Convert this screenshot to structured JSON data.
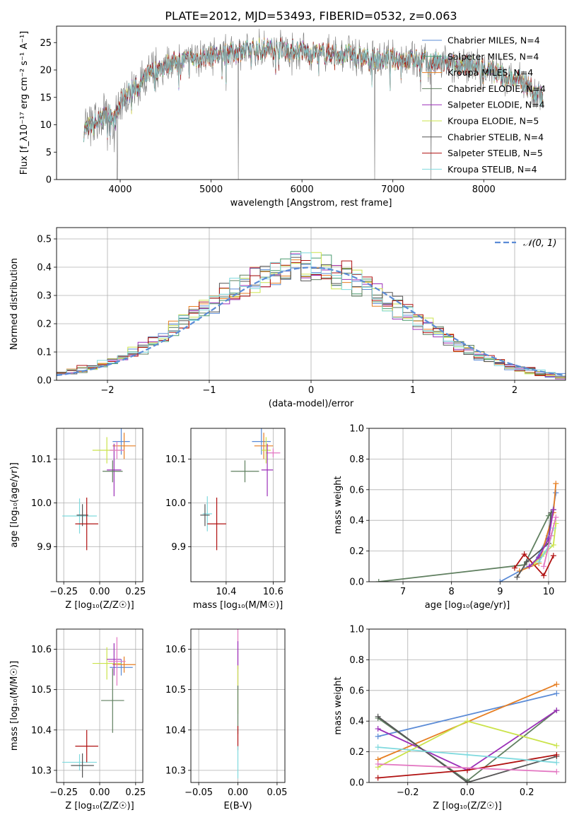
{
  "figure_title": "PLATE=2012, MJD=53493, FIBERID=0532, z=0.063",
  "colors": {
    "Chabrier MILES": "#5b8bd6",
    "Salpeter MILES": "#4a9a6f",
    "Kroupa MILES": "#e67e22",
    "Chabrier ELODIE": "#5f7f5f",
    "Salpeter ELODIE": "#9b2fb8",
    "Kroupa ELODIE": "#cbe34b",
    "Chabrier STELIB": "#555555",
    "Salpeter STELIB": "#b01010",
    "Kroupa STELIB": "#7fd9de",
    "extra": "#e377c2",
    "gaussian": "#5b8bd6"
  },
  "chart_data": [
    {
      "id": "spectrum",
      "type": "line",
      "xlabel": "wavelength [Angstrom, rest frame]",
      "ylabel": "Flux [f_λ10⁻¹⁷ erg cm⁻² s⁻¹ A⁻¹]",
      "xlim": [
        3300,
        8900
      ],
      "ylim": [
        0,
        28
      ],
      "xticks": [
        4000,
        5000,
        6000,
        7000,
        8000
      ],
      "yticks": [
        0,
        5,
        10,
        15,
        20,
        25
      ],
      "grid": false,
      "legend_position": "right",
      "legend": [
        "Chabrier MILES, N_SSP=4",
        "Salpeter MILES, N_SSP=4",
        "Kroupa MILES, N_SSP=4",
        "Chabrier ELODIE, N_SSP=4",
        "Salpeter ELODIE, N_SSP=4",
        "Kroupa ELODIE, N_SSP=5",
        "Chabrier STELIB, N_SSP=4",
        "Salpeter STELIB, N_SSP=5",
        "Kroupa STELIB, N_SSP=4"
      ],
      "continuum": {
        "x": [
          3600,
          3700,
          3800,
          3900,
          3950,
          4000,
          4100,
          4200,
          4300,
          4400,
          4500,
          4600,
          4800,
          5000,
          5200,
          5400,
          5600,
          5800,
          6000,
          6200,
          6400,
          6600,
          6800,
          7000,
          7200,
          7400,
          7600,
          7800,
          8000,
          8200,
          8400,
          8600,
          8650
        ],
        "y": [
          9,
          10,
          11,
          12,
          11,
          14,
          16,
          17,
          19,
          20,
          21,
          21.5,
          22,
          22.5,
          23,
          23.5,
          24,
          24,
          23.5,
          23,
          23,
          22.5,
          22,
          22,
          22,
          21.5,
          21,
          21,
          20.5,
          19,
          18,
          16,
          15
        ]
      },
      "absorption_lines": [
        {
          "x": 3934,
          "y": 5
        },
        {
          "x": 3968,
          "y": 0
        },
        {
          "x": 5300,
          "y": 0
        },
        {
          "x": 5890,
          "y": 19
        },
        {
          "x": 6800,
          "y": 0
        },
        {
          "x": 7420,
          "y": 0
        }
      ]
    },
    {
      "id": "residuals",
      "type": "line",
      "xlabel": "(data-model)/error",
      "ylabel": "Normed distribution",
      "xlim": [
        -2.5,
        2.5
      ],
      "ylim": [
        0,
        0.54
      ],
      "xticks": [
        -2,
        -1,
        0,
        1,
        2
      ],
      "yticks": [
        0.0,
        0.1,
        0.2,
        0.3,
        0.4,
        0.5
      ],
      "grid": true,
      "legend_position": "top-right",
      "legend": [
        "𝒩(0, 1)"
      ],
      "gaussian": {
        "mean": 0,
        "sigma": 1,
        "style": "dashed"
      },
      "histogram_bins": {
        "start": -2.5,
        "width": 0.1,
        "count": 50
      }
    },
    {
      "id": "age_vs_Z",
      "type": "scatter",
      "xlabel": "Z [log₁₀(Z/Z☉)]",
      "ylabel": "age  [log₁₀(age/yr)]",
      "xlim": [
        -0.3,
        0.3
      ],
      "ylim": [
        9.82,
        10.17
      ],
      "xticks": [
        -0.25,
        0.0,
        0.25
      ],
      "xticklabels": [
        "−0.25",
        "0.00",
        "0.25"
      ],
      "yticks": [
        9.9,
        10.0,
        10.1
      ],
      "grid": true,
      "points": [
        {
          "model": "Chabrier MILES",
          "x": 0.15,
          "y": 10.14,
          "xerr": 0.06,
          "yerr": 0.03
        },
        {
          "model": "Kroupa MILES",
          "x": 0.17,
          "y": 10.13,
          "xerr": 0.08,
          "yerr": 0.03
        },
        {
          "model": "Salpeter ELODIE",
          "x": 0.1,
          "y": 10.075,
          "xerr": 0.05,
          "yerr": 0.06
        },
        {
          "model": "Chabrier ELODIE",
          "x": 0.09,
          "y": 10.072,
          "xerr": 0.07,
          "yerr": 0.025
        },
        {
          "model": "Kroupa ELODIE",
          "x": 0.05,
          "y": 10.12,
          "xerr": 0.1,
          "yerr": 0.03
        },
        {
          "model": "extra",
          "x": 0.12,
          "y": 10.12,
          "xerr": 0.05,
          "yerr": 0.02
        },
        {
          "model": "Kroupa STELIB",
          "x": -0.14,
          "y": 9.97,
          "xerr": 0.12,
          "yerr": 0.04
        },
        {
          "model": "Chabrier STELIB",
          "x": -0.12,
          "y": 9.972,
          "xerr": 0.04,
          "yerr": 0.025
        },
        {
          "model": "Salpeter STELIB",
          "x": -0.09,
          "y": 9.952,
          "xerr": 0.08,
          "yerr": 0.06
        }
      ]
    },
    {
      "id": "age_vs_mass",
      "type": "scatter",
      "xlabel": "mass [log₁₀(M/M☉)]",
      "ylabel": "",
      "xlim": [
        10.25,
        10.65
      ],
      "ylim": [
        9.82,
        10.17
      ],
      "xticks": [
        10.4,
        10.6
      ],
      "yticks": [
        9.9,
        10.0,
        10.1
      ],
      "grid": true,
      "points": [
        {
          "model": "Chabrier MILES",
          "x": 10.55,
          "y": 10.14,
          "xerr": 0.04,
          "yerr": 0.03
        },
        {
          "model": "Kroupa MILES",
          "x": 10.56,
          "y": 10.13,
          "xerr": 0.04,
          "yerr": 0.03
        },
        {
          "model": "Kroupa ELODIE",
          "x": 10.57,
          "y": 10.12,
          "xerr": 0.02,
          "yerr": 0.03
        },
        {
          "model": "extra",
          "x": 10.6,
          "y": 10.114,
          "xerr": 0.03,
          "yerr": 0.01
        },
        {
          "model": "Salpeter ELODIE",
          "x": 10.575,
          "y": 10.075,
          "xerr": 0.025,
          "yerr": 0.06
        },
        {
          "model": "Chabrier ELODIE",
          "x": 10.48,
          "y": 10.072,
          "xerr": 0.06,
          "yerr": 0.025
        },
        {
          "model": "Kroupa STELIB",
          "x": 10.32,
          "y": 9.975,
          "xerr": 0.02,
          "yerr": 0.04
        },
        {
          "model": "Chabrier STELIB",
          "x": 10.31,
          "y": 9.972,
          "xerr": 0.02,
          "yerr": 0.025
        },
        {
          "model": "Salpeter STELIB",
          "x": 10.36,
          "y": 9.952,
          "xerr": 0.04,
          "yerr": 0.06
        }
      ]
    },
    {
      "id": "weight_vs_age",
      "type": "line",
      "xlabel": "age  [log₁₀(age/yr)]",
      "ylabel": "mass weight",
      "xlim": [
        6.3,
        10.35
      ],
      "ylim": [
        0,
        1.0
      ],
      "xticks": [
        7,
        8,
        9,
        10
      ],
      "yticks": [
        0.0,
        0.2,
        0.4,
        0.6,
        0.8,
        1.0
      ],
      "grid": true,
      "series": [
        {
          "model": "Chabrier ELODIE",
          "x": [
            6.5,
            9.5,
            10.0,
            10.1
          ],
          "y": [
            0.0,
            0.11,
            0.43,
            0.47
          ]
        },
        {
          "model": "Chabrier MILES",
          "x": [
            9.0,
            9.7,
            10.0,
            10.15
          ],
          "y": [
            0.0,
            0.12,
            0.3,
            0.58
          ]
        },
        {
          "model": "Kroupa MILES",
          "x": [
            9.4,
            9.8,
            10.1,
            10.15
          ],
          "y": [
            0.07,
            0.12,
            0.45,
            0.64
          ]
        },
        {
          "model": "Salpeter STELIB",
          "x": [
            9.3,
            9.5,
            9.9,
            10.1
          ],
          "y": [
            0.09,
            0.18,
            0.04,
            0.17
          ]
        },
        {
          "model": "Chabrier STELIB",
          "x": [
            9.35,
            9.55,
            10.0,
            10.05
          ],
          "y": [
            0.03,
            0.13,
            0.25,
            0.45
          ]
        },
        {
          "model": "Kroupa ELODIE",
          "x": [
            9.7,
            9.9,
            10.1,
            10.15
          ],
          "y": [
            0.12,
            0.18,
            0.24,
            0.38
          ]
        },
        {
          "model": "Salpeter ELODIE",
          "x": [
            9.6,
            9.8,
            10.0,
            10.1
          ],
          "y": [
            0.1,
            0.16,
            0.28,
            0.47
          ]
        },
        {
          "model": "Kroupa STELIB",
          "x": [
            9.8,
            10.0,
            10.1
          ],
          "y": [
            0.13,
            0.23,
            0.35
          ]
        },
        {
          "model": "extra",
          "x": [
            9.9,
            10.05,
            10.15
          ],
          "y": [
            0.1,
            0.3,
            0.42
          ]
        }
      ]
    },
    {
      "id": "mass_vs_Z",
      "type": "scatter",
      "xlabel": "Z [log₁₀(Z/Z☉)]",
      "ylabel": "mass [log₁₀(M/M☉)]",
      "xlim": [
        -0.3,
        0.3
      ],
      "ylim": [
        10.27,
        10.65
      ],
      "xticks": [
        -0.25,
        0.0,
        0.25
      ],
      "xticklabels": [
        "−0.25",
        "0.00",
        "0.25"
      ],
      "yticks": [
        10.3,
        10.4,
        10.5,
        10.6
      ],
      "grid": true,
      "points": [
        {
          "model": "Chabrier MILES",
          "x": 0.15,
          "y": 10.555,
          "xerr": 0.08,
          "yerr": 0.02
        },
        {
          "model": "Kroupa MILES",
          "x": 0.17,
          "y": 10.562,
          "xerr": 0.08,
          "yerr": 0.02
        },
        {
          "model": "Kroupa ELODIE",
          "x": 0.05,
          "y": 10.565,
          "xerr": 0.1,
          "yerr": 0.04
        },
        {
          "model": "Salpeter ELODIE",
          "x": 0.1,
          "y": 10.575,
          "xerr": 0.05,
          "yerr": 0.04
        },
        {
          "model": "extra",
          "x": 0.12,
          "y": 10.57,
          "xerr": 0.06,
          "yerr": 0.06
        },
        {
          "model": "Chabrier ELODIE",
          "x": 0.09,
          "y": 10.473,
          "xerr": 0.08,
          "yerr": 0.08
        },
        {
          "model": "Kroupa STELIB",
          "x": -0.14,
          "y": 10.32,
          "xerr": 0.12,
          "yerr": 0.02
        },
        {
          "model": "Chabrier STELIB",
          "x": -0.12,
          "y": 10.312,
          "xerr": 0.08,
          "yerr": 0.03
        },
        {
          "model": "Salpeter STELIB",
          "x": -0.09,
          "y": 10.36,
          "xerr": 0.08,
          "yerr": 0.04
        }
      ]
    },
    {
      "id": "mass_vs_EBV",
      "type": "scatter",
      "xlabel": "E(B-V)",
      "ylabel": "",
      "xlim": [
        -0.06,
        0.06
      ],
      "ylim": [
        10.27,
        10.65
      ],
      "xticks": [
        -0.05,
        0.0,
        0.05
      ],
      "xticklabels": [
        "−0.05",
        "0.00",
        "0.05"
      ],
      "yticks": [
        10.3,
        10.4,
        10.5,
        10.6
      ],
      "grid": true,
      "points": [
        {
          "model": "extra",
          "x": 0.0,
          "y": 10.6,
          "xerr": 0,
          "yerr": 0.05
        },
        {
          "model": "Salpeter ELODIE",
          "x": 0.0,
          "y": 10.56,
          "xerr": 0,
          "yerr": 0.06
        },
        {
          "model": "Kroupa ELODIE",
          "x": 0.0,
          "y": 10.5,
          "xerr": 0,
          "yerr": 0.06
        },
        {
          "model": "Chabrier ELODIE",
          "x": 0.0,
          "y": 10.45,
          "xerr": 0,
          "yerr": 0.06
        },
        {
          "model": "Salpeter STELIB",
          "x": 0.0,
          "y": 10.38,
          "xerr": 0,
          "yerr": 0.03
        },
        {
          "model": "Kroupa STELIB",
          "x": 0.0,
          "y": 10.32,
          "xerr": 0,
          "yerr": 0.04
        }
      ]
    },
    {
      "id": "weight_vs_Z",
      "type": "line",
      "xlabel": "Z [log₁₀(Z/Z☉)]",
      "ylabel": "mass weight",
      "xlim": [
        -0.33,
        0.33
      ],
      "ylim": [
        0,
        1.0
      ],
      "xticks": [
        -0.2,
        0.0,
        0.2
      ],
      "xticklabels": [
        "−0.2",
        "0.0",
        "0.2"
      ],
      "yticks": [
        0.0,
        0.2,
        0.4,
        0.6,
        0.8,
        1.0
      ],
      "grid": true,
      "series": [
        {
          "model": "Chabrier MILES",
          "x": [
            -0.3,
            0.3
          ],
          "y": [
            0.3,
            0.58
          ]
        },
        {
          "model": "Kroupa MILES",
          "x": [
            -0.3,
            0.3
          ],
          "y": [
            0.15,
            0.64
          ]
        },
        {
          "model": "Chabrier ELODIE",
          "x": [
            -0.3,
            0.0,
            0.3
          ],
          "y": [
            0.42,
            0.01,
            0.47
          ]
        },
        {
          "model": "Salpeter ELODIE",
          "x": [
            -0.3,
            0.0,
            0.3
          ],
          "y": [
            0.35,
            0.08,
            0.47
          ]
        },
        {
          "model": "Kroupa ELODIE",
          "x": [
            -0.3,
            0.0,
            0.3
          ],
          "y": [
            0.1,
            0.4,
            0.24
          ]
        },
        {
          "model": "Chabrier STELIB",
          "x": [
            -0.3,
            0.0,
            0.3
          ],
          "y": [
            0.43,
            0.0,
            0.17
          ]
        },
        {
          "model": "Salpeter STELIB",
          "x": [
            -0.3,
            0.0,
            0.3
          ],
          "y": [
            0.03,
            0.08,
            0.18
          ]
        },
        {
          "model": "Kroupa STELIB",
          "x": [
            -0.3,
            0.0,
            0.3
          ],
          "y": [
            0.23,
            0.18,
            0.13
          ]
        },
        {
          "model": "extra",
          "x": [
            -0.3,
            0.3
          ],
          "y": [
            0.12,
            0.07
          ]
        }
      ]
    }
  ]
}
